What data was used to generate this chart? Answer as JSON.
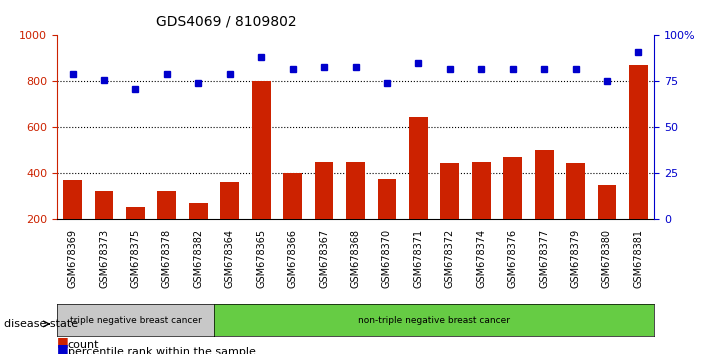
{
  "title": "GDS4069 / 8109802",
  "samples": [
    "GSM678369",
    "GSM678373",
    "GSM678375",
    "GSM678378",
    "GSM678382",
    "GSM678364",
    "GSM678365",
    "GSM678366",
    "GSM678367",
    "GSM678368",
    "GSM678370",
    "GSM678371",
    "GSM678372",
    "GSM678374",
    "GSM678376",
    "GSM678377",
    "GSM678379",
    "GSM678380",
    "GSM678381"
  ],
  "counts": [
    370,
    325,
    255,
    325,
    270,
    365,
    800,
    400,
    450,
    450,
    375,
    645,
    445,
    450,
    470,
    500,
    445,
    350,
    870
  ],
  "percentiles": [
    79,
    76,
    71,
    79,
    74,
    79,
    88,
    82,
    83,
    83,
    74,
    85,
    82,
    82,
    82,
    82,
    82,
    75,
    91
  ],
  "triple_neg_count": 5,
  "group1_label": "triple negative breast cancer",
  "group2_label": "non-triple negative breast cancer",
  "bar_color": "#cc2200",
  "dot_color": "#0000cc",
  "left_ylim": [
    200,
    1000
  ],
  "left_yticks": [
    200,
    400,
    600,
    800,
    1000
  ],
  "right_ylim": [
    0,
    100
  ],
  "right_yticks": [
    0,
    25,
    50,
    75,
    100
  ],
  "background_color": "#ffffff",
  "group1_bg": "#c8c8c8",
  "group2_bg": "#66cc44",
  "disease_state_label": "disease state"
}
